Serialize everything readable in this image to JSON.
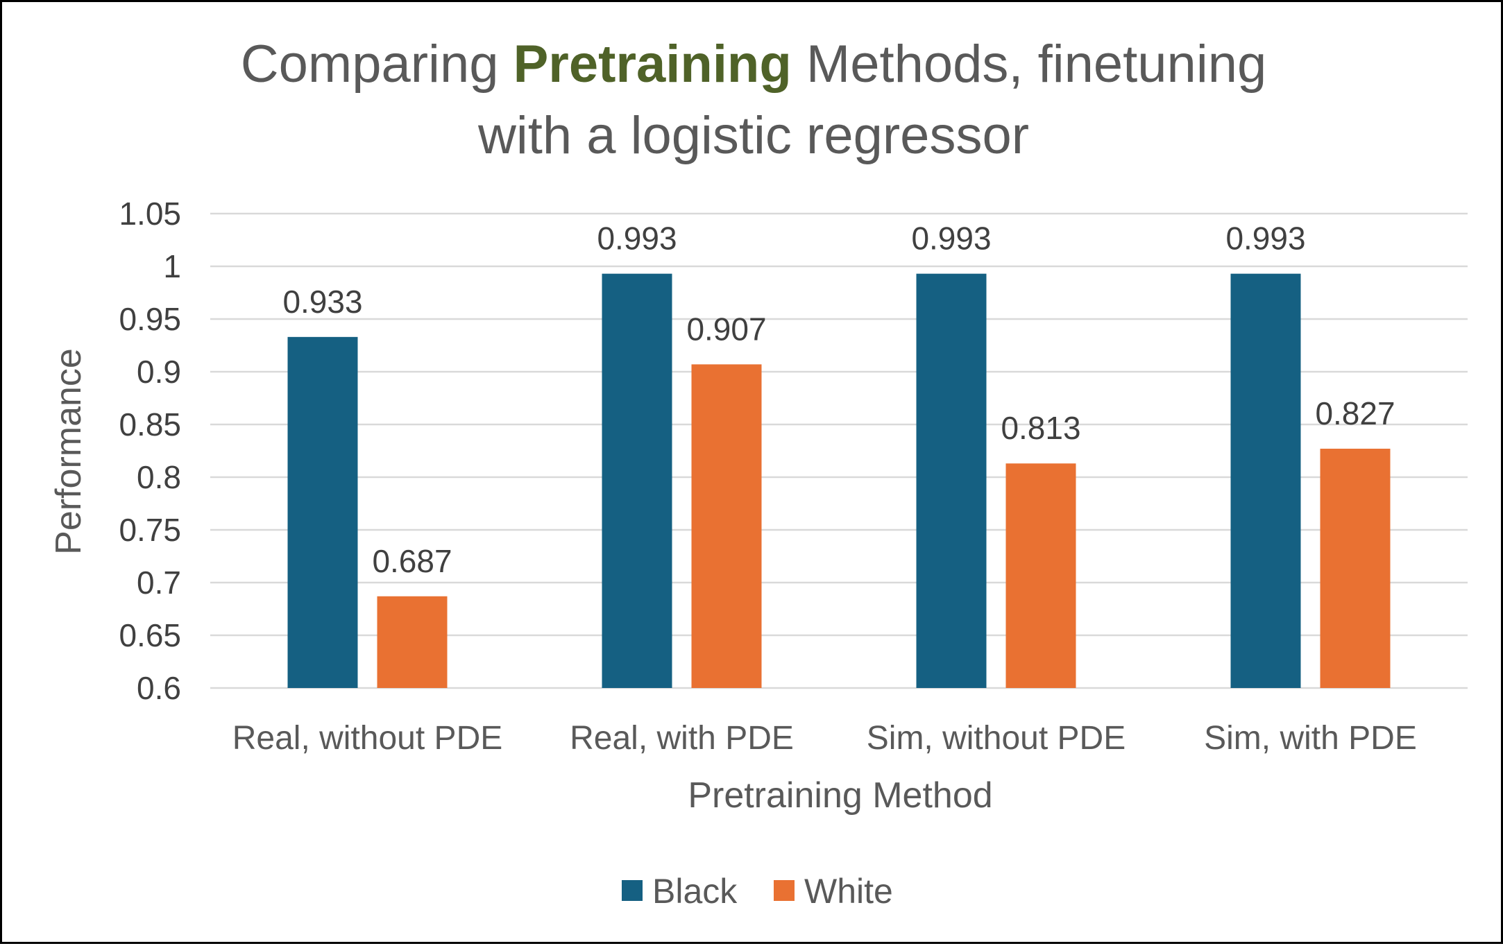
{
  "chart_data": {
    "type": "bar",
    "title": {
      "part1": "Comparing ",
      "highlight": "Pretraining",
      "part2": " Methods, finetuning",
      "line2": "with a logistic regressor"
    },
    "title_highlight_color": "#4F6228",
    "xlabel": "Pretraining Method",
    "ylabel": "Performance",
    "categories": [
      "Real, without PDE",
      "Real, with PDE",
      "Sim, without PDE",
      "Sim, with PDE"
    ],
    "series": [
      {
        "name": "Black",
        "color": "#156082",
        "values": [
          0.933,
          0.993,
          0.993,
          0.993
        ]
      },
      {
        "name": "White",
        "color": "#E97132",
        "values": [
          0.687,
          0.907,
          0.813,
          0.827
        ]
      }
    ],
    "data_labels": [
      [
        "0.933",
        "0.993",
        "0.993",
        "0.993"
      ],
      [
        "0.687",
        "0.907",
        "0.813",
        "0.827"
      ]
    ],
    "ylim": [
      0.6,
      1.05
    ],
    "yticks": [
      "0.6",
      "0.65",
      "0.7",
      "0.75",
      "0.8",
      "0.85",
      "0.9",
      "0.95",
      "1",
      "1.05"
    ],
    "grid": true,
    "legend_position": "bottom"
  }
}
